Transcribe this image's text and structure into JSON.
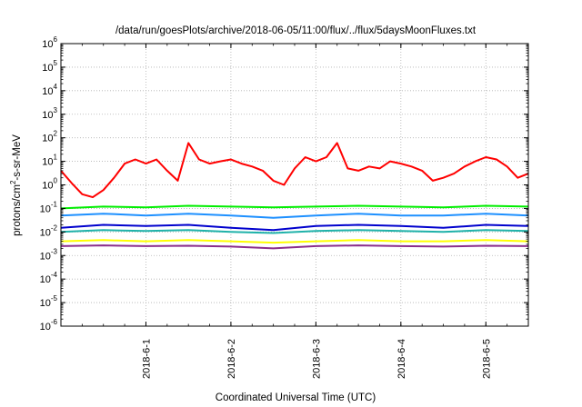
{
  "chart_data": {
    "type": "line",
    "title": "/data/run/goesPlots/archive/2018-06-05/11:00/flux/../flux/5daysMoonFluxes.txt",
    "xlabel": "Coordinated Universal Time (UTC)",
    "ylabel": "protons/cm²-s-sr-MeV",
    "ylabel_parts": {
      "pre": "protons/cm",
      "sup": "2",
      "post": "-s-sr-MeV"
    },
    "yscale": "log",
    "ylim": [
      1e-06,
      1000000.0
    ],
    "xlim": [
      "2018-05-31 00:00",
      "2018-06-05 12:00"
    ],
    "grid": true,
    "x_ticks": [
      {
        "label": "2018-6-1",
        "value": "2018-06-01"
      },
      {
        "label": "2018-6-2",
        "value": "2018-06-02"
      },
      {
        "label": "2018-6-3",
        "value": "2018-06-03"
      },
      {
        "label": "2018-6-4",
        "value": "2018-06-04"
      },
      {
        "label": "2018-6-5",
        "value": "2018-06-05"
      }
    ],
    "y_ticks": [
      {
        "base": "10",
        "exp": "-6",
        "value": 1e-06
      },
      {
        "base": "10",
        "exp": "-5",
        "value": 1e-05
      },
      {
        "base": "10",
        "exp": "-4",
        "value": 0.0001
      },
      {
        "base": "10",
        "exp": "-3",
        "value": 0.001
      },
      {
        "base": "10",
        "exp": "-2",
        "value": 0.01
      },
      {
        "base": "10",
        "exp": "-1",
        "value": 0.1
      },
      {
        "base": "10",
        "exp": "0",
        "value": 1
      },
      {
        "base": "10",
        "exp": "1",
        "value": 10
      },
      {
        "base": "10",
        "exp": "2",
        "value": 100
      },
      {
        "base": "10",
        "exp": "3",
        "value": 1000
      },
      {
        "base": "10",
        "exp": "4",
        "value": 10000
      },
      {
        "base": "10",
        "exp": "5",
        "value": 100000
      },
      {
        "base": "10",
        "exp": "6",
        "value": 1000000
      }
    ],
    "series": [
      {
        "color": "#ff0000",
        "x": [
          "2018-05-31 00:00",
          "2018-05-31 03:00",
          "2018-05-31 06:00",
          "2018-05-31 09:00",
          "2018-05-31 12:00",
          "2018-05-31 15:00",
          "2018-05-31 18:00",
          "2018-05-31 21:00",
          "2018-06-01 00:00",
          "2018-06-01 03:00",
          "2018-06-01 06:00",
          "2018-06-01 09:00",
          "2018-06-01 12:00",
          "2018-06-01 15:00",
          "2018-06-01 18:00",
          "2018-06-01 21:00",
          "2018-06-02 00:00",
          "2018-06-02 03:00",
          "2018-06-02 06:00",
          "2018-06-02 09:00",
          "2018-06-02 12:00",
          "2018-06-02 15:00",
          "2018-06-02 18:00",
          "2018-06-02 21:00",
          "2018-06-03 00:00",
          "2018-06-03 03:00",
          "2018-06-03 06:00",
          "2018-06-03 09:00",
          "2018-06-03 12:00",
          "2018-06-03 15:00",
          "2018-06-03 18:00",
          "2018-06-03 21:00",
          "2018-06-04 00:00",
          "2018-06-04 03:00",
          "2018-06-04 06:00",
          "2018-06-04 09:00",
          "2018-06-04 12:00",
          "2018-06-04 15:00",
          "2018-06-04 18:00",
          "2018-06-04 21:00",
          "2018-06-05 00:00",
          "2018-06-05 03:00",
          "2018-06-05 06:00",
          "2018-06-05 09:00",
          "2018-06-05 12:00"
        ],
        "y": [
          4,
          1.2,
          0.4,
          0.3,
          0.6,
          2,
          8,
          12,
          8,
          12,
          4,
          1.5,
          60,
          12,
          8,
          10,
          12,
          8,
          6,
          4,
          1.5,
          1,
          5,
          15,
          10,
          15,
          60,
          5,
          4,
          6,
          5,
          10,
          8,
          6,
          4,
          1.5,
          2,
          3,
          6,
          10,
          15,
          12,
          6,
          2,
          3
        ]
      },
      {
        "color": "#00ee00",
        "x": [
          "2018-05-31 00:00",
          "2018-05-31 12:00",
          "2018-06-01 00:00",
          "2018-06-01 12:00",
          "2018-06-02 00:00",
          "2018-06-02 12:00",
          "2018-06-03 00:00",
          "2018-06-03 12:00",
          "2018-06-04 00:00",
          "2018-06-04 12:00",
          "2018-06-05 00:00",
          "2018-06-05 12:00"
        ],
        "y": [
          0.1,
          0.12,
          0.11,
          0.13,
          0.12,
          0.11,
          0.12,
          0.13,
          0.12,
          0.11,
          0.13,
          0.12
        ]
      },
      {
        "color": "#1e90ff",
        "x": [
          "2018-05-31 00:00",
          "2018-05-31 12:00",
          "2018-06-01 00:00",
          "2018-06-01 12:00",
          "2018-06-02 00:00",
          "2018-06-02 12:00",
          "2018-06-03 00:00",
          "2018-06-03 12:00",
          "2018-06-04 00:00",
          "2018-06-04 12:00",
          "2018-06-05 00:00",
          "2018-06-05 12:00"
        ],
        "y": [
          0.05,
          0.06,
          0.05,
          0.06,
          0.05,
          0.04,
          0.05,
          0.06,
          0.05,
          0.05,
          0.06,
          0.05
        ]
      },
      {
        "color": "#0000cd",
        "x": [
          "2018-05-31 00:00",
          "2018-05-31 12:00",
          "2018-06-01 00:00",
          "2018-06-01 12:00",
          "2018-06-02 00:00",
          "2018-06-02 12:00",
          "2018-06-03 00:00",
          "2018-06-03 12:00",
          "2018-06-04 00:00",
          "2018-06-04 12:00",
          "2018-06-05 00:00",
          "2018-06-05 12:00"
        ],
        "y": [
          0.015,
          0.02,
          0.018,
          0.02,
          0.015,
          0.012,
          0.018,
          0.02,
          0.018,
          0.015,
          0.02,
          0.018
        ]
      },
      {
        "color": "#20b2aa",
        "x": [
          "2018-05-31 00:00",
          "2018-05-31 12:00",
          "2018-06-01 00:00",
          "2018-06-01 12:00",
          "2018-06-02 00:00",
          "2018-06-02 12:00",
          "2018-06-03 00:00",
          "2018-06-03 12:00",
          "2018-06-04 00:00",
          "2018-06-04 12:00",
          "2018-06-05 00:00",
          "2018-06-05 12:00"
        ],
        "y": [
          0.01,
          0.012,
          0.011,
          0.012,
          0.01,
          0.009,
          0.011,
          0.012,
          0.011,
          0.01,
          0.012,
          0.011
        ]
      },
      {
        "color": "#ffff00",
        "x": [
          "2018-05-31 00:00",
          "2018-05-31 12:00",
          "2018-06-01 00:00",
          "2018-06-01 12:00",
          "2018-06-02 00:00",
          "2018-06-02 12:00",
          "2018-06-03 00:00",
          "2018-06-03 12:00",
          "2018-06-04 00:00",
          "2018-06-04 12:00",
          "2018-06-05 00:00",
          "2018-06-05 12:00"
        ],
        "y": [
          0.004,
          0.0045,
          0.004,
          0.0045,
          0.004,
          0.0035,
          0.004,
          0.0045,
          0.004,
          0.004,
          0.0045,
          0.004
        ]
      },
      {
        "color": "#8b2e8b",
        "x": [
          "2018-05-31 00:00",
          "2018-05-31 12:00",
          "2018-06-01 00:00",
          "2018-06-01 12:00",
          "2018-06-02 00:00",
          "2018-06-02 12:00",
          "2018-06-03 00:00",
          "2018-06-03 12:00",
          "2018-06-04 00:00",
          "2018-06-04 12:00",
          "2018-06-05 00:00",
          "2018-06-05 12:00"
        ],
        "y": [
          0.0025,
          0.0027,
          0.0025,
          0.0026,
          0.0024,
          0.002,
          0.0025,
          0.0027,
          0.0025,
          0.0024,
          0.0026,
          0.0025
        ]
      }
    ]
  }
}
